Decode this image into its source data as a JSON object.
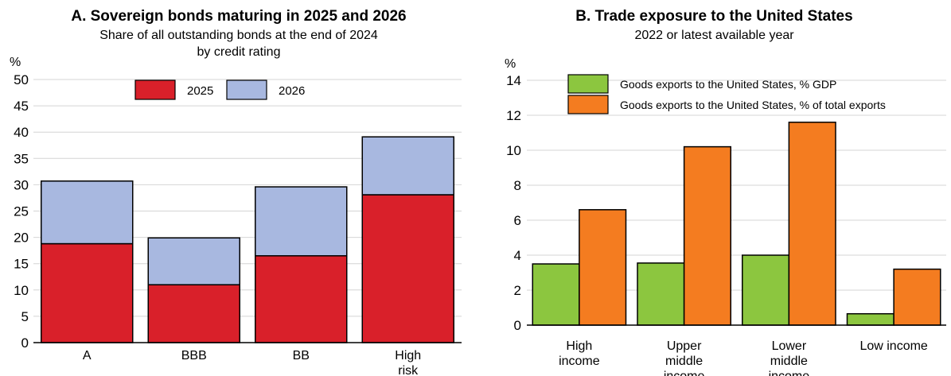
{
  "chart_data": [
    {
      "type": "bar",
      "stacked": true,
      "title": "A. Sovereign bonds maturing in 2025 and 2026",
      "subtitle": [
        "Share of all outstanding bonds at the end of 2024",
        "by credit rating"
      ],
      "yunit": "%",
      "ylim": [
        0,
        50
      ],
      "yticks": [
        0,
        5,
        10,
        15,
        20,
        25,
        30,
        35,
        40,
        45,
        50
      ],
      "grid": true,
      "legend_position": "top-center",
      "categories": [
        [
          "A"
        ],
        [
          "BBB"
        ],
        [
          "BB"
        ],
        [
          "High",
          "risk"
        ]
      ],
      "series": [
        {
          "name": "2025",
          "color": "#d9202a",
          "values": [
            18.8,
            11.0,
            16.5,
            28.1
          ]
        },
        {
          "name": "2026",
          "color": "#a8b8e0",
          "values": [
            11.9,
            8.9,
            13.1,
            11.0
          ]
        }
      ]
    },
    {
      "type": "bar",
      "title": "B. Trade exposure to the United States",
      "subtitle": [
        "2022 or latest available year"
      ],
      "yunit": "%",
      "ylim": [
        0,
        14
      ],
      "yticks": [
        0,
        2,
        4,
        6,
        8,
        10,
        12,
        14
      ],
      "grid": true,
      "legend_position": "top-left",
      "categories": [
        [
          "High",
          "income"
        ],
        [
          "Upper",
          "middle",
          "income"
        ],
        [
          "Lower",
          "middle",
          "income"
        ],
        [
          "Low income"
        ]
      ],
      "series": [
        {
          "name": "Goods exports to the United States, % GDP",
          "color": "#8cc63f",
          "values": [
            3.5,
            3.55,
            4.0,
            0.65
          ]
        },
        {
          "name": "Goods exports to the United States, % of total exports",
          "color": "#f47c20",
          "values": [
            6.6,
            10.2,
            11.6,
            3.2
          ]
        }
      ]
    }
  ]
}
